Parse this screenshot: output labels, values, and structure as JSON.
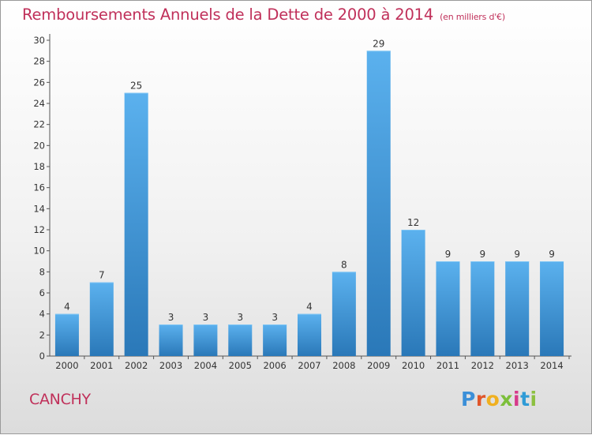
{
  "header": {
    "title": "Remboursements Annuels de la Dette de 2000 à 2014",
    "unit": "(en milliers d'€)"
  },
  "footer": {
    "commune": "CANCHY",
    "brand": [
      "P",
      "r",
      "o",
      "x",
      "i",
      "t",
      "i"
    ],
    "brand_colors": [
      "#3b8fd8",
      "#e0562a",
      "#f0b020",
      "#7cbf3a",
      "#d63a8a",
      "#2f9bd6",
      "#8cc040"
    ]
  },
  "colors": {
    "bar_top": "#5bb1ee",
    "bar_bottom": "#2a78b8",
    "title": "#c0305a"
  },
  "chart_data": {
    "type": "bar",
    "categories": [
      "2000",
      "2001",
      "2002",
      "2003",
      "2004",
      "2005",
      "2006",
      "2007",
      "2008",
      "2009",
      "2010",
      "2011",
      "2012",
      "2013",
      "2014"
    ],
    "values": [
      4,
      7,
      25,
      3,
      3,
      3,
      3,
      4,
      8,
      29,
      12,
      9,
      9,
      9,
      9
    ],
    "ylim": [
      0,
      30
    ],
    "yticks": [
      0,
      2,
      4,
      6,
      8,
      10,
      12,
      14,
      16,
      18,
      20,
      22,
      24,
      26,
      28,
      30
    ],
    "grid": false,
    "title": "Remboursements Annuels de la Dette de 2000 à 2014",
    "xlabel": "",
    "ylabel": ""
  }
}
